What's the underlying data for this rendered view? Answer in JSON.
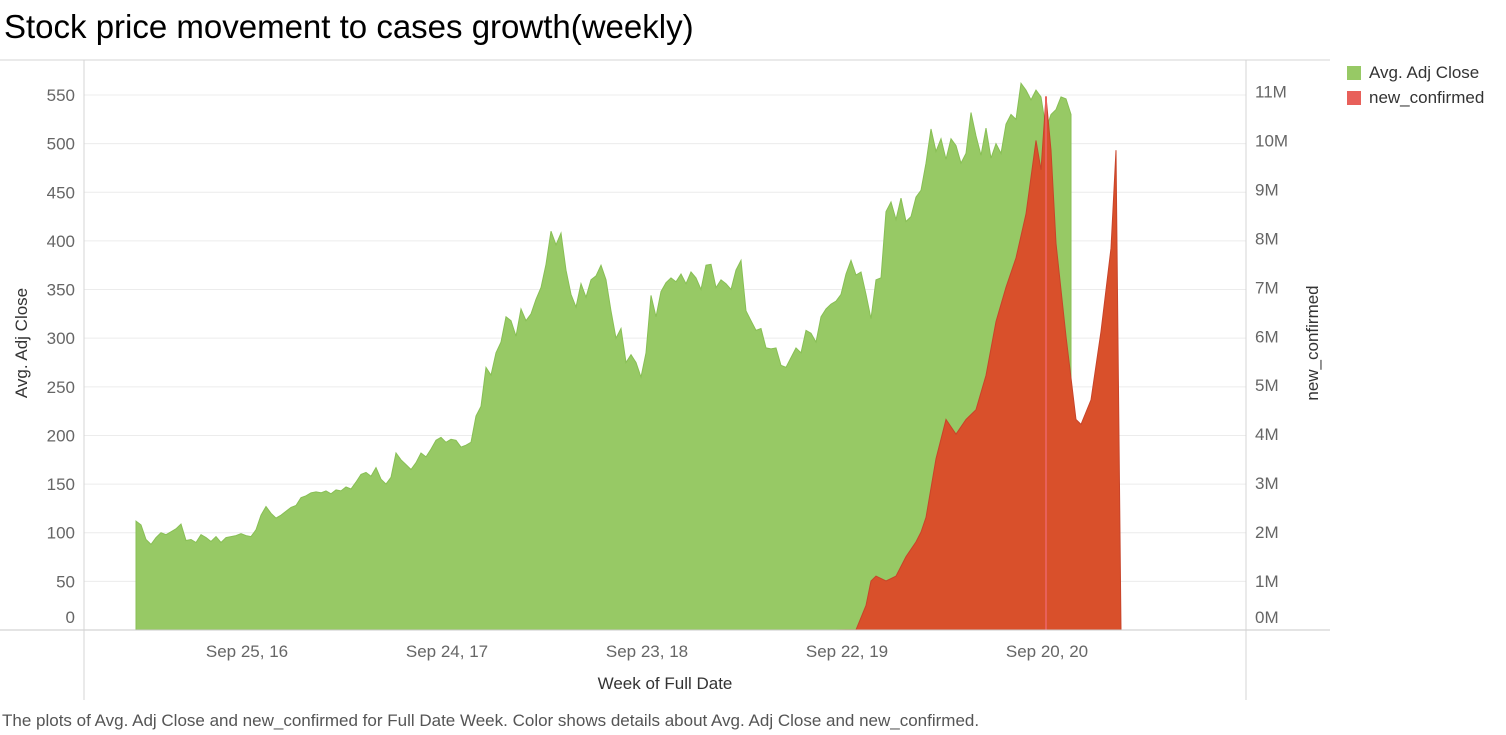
{
  "title": "Stock price movement to cases growth(weekly)",
  "caption": "The plots of Avg. Adj Close and new_confirmed for Full Date Week.  Color shows details about Avg. Adj Close and new_confirmed.",
  "legend": [
    {
      "label": "Avg. Adj Close",
      "color": "#97c965"
    },
    {
      "label": "new_confirmed",
      "color": "#e8605a"
    }
  ],
  "chart_data": {
    "type": "area",
    "xlabel": "Week of Full Date",
    "ylabel_left": "Avg. Adj Close",
    "ylabel_right": "new_confirmed",
    "x_tick_labels": [
      "Sep 25, 16",
      "Sep 24, 17",
      "Sep 23, 18",
      "Sep 22, 19",
      "Sep 20, 20"
    ],
    "y_left_ticks": [
      "0",
      "50",
      "100",
      "150",
      "200",
      "250",
      "300",
      "350",
      "400",
      "450",
      "500",
      "550"
    ],
    "y_right_ticks": [
      "0M",
      "1M",
      "2M",
      "3M",
      "4M",
      "5M",
      "6M",
      "7M",
      "8M",
      "9M",
      "10M",
      "11M"
    ],
    "ylim_left": [
      0,
      550
    ],
    "ylim_right": [
      0,
      11000000
    ],
    "x_range_weeks": [
      0,
      212
    ],
    "x_tick_weeks": [
      20,
      60,
      100,
      140,
      180
    ],
    "series": [
      {
        "name": "Avg. Adj Close",
        "color": "#97c965",
        "points": [
          [
            0,
            112
          ],
          [
            1,
            108
          ],
          [
            2,
            93
          ],
          [
            3,
            88
          ],
          [
            4,
            95
          ],
          [
            5,
            100
          ],
          [
            6,
            98
          ],
          [
            7,
            101
          ],
          [
            8,
            104
          ],
          [
            9,
            109
          ],
          [
            10,
            92
          ],
          [
            11,
            93
          ],
          [
            12,
            90
          ],
          [
            13,
            98
          ],
          [
            14,
            95
          ],
          [
            15,
            91
          ],
          [
            16,
            96
          ],
          [
            17,
            90
          ],
          [
            18,
            95
          ],
          [
            19,
            96
          ],
          [
            20,
            97
          ],
          [
            21,
            99
          ],
          [
            22,
            97
          ],
          [
            23,
            96
          ],
          [
            24,
            103
          ],
          [
            25,
            118
          ],
          [
            26,
            127
          ],
          [
            27,
            120
          ],
          [
            28,
            115
          ],
          [
            29,
            118
          ],
          [
            30,
            122
          ],
          [
            31,
            126
          ],
          [
            32,
            128
          ],
          [
            33,
            136
          ],
          [
            34,
            138
          ],
          [
            35,
            141
          ],
          [
            36,
            142
          ],
          [
            37,
            141
          ],
          [
            38,
            143
          ],
          [
            39,
            140
          ],
          [
            40,
            144
          ],
          [
            41,
            143
          ],
          [
            42,
            147
          ],
          [
            43,
            145
          ],
          [
            44,
            152
          ],
          [
            45,
            160
          ],
          [
            46,
            162
          ],
          [
            47,
            158
          ],
          [
            48,
            167
          ],
          [
            49,
            155
          ],
          [
            50,
            150
          ],
          [
            51,
            157
          ],
          [
            52,
            182
          ],
          [
            53,
            175
          ],
          [
            54,
            170
          ],
          [
            55,
            165
          ],
          [
            56,
            172
          ],
          [
            57,
            182
          ],
          [
            58,
            178
          ],
          [
            59,
            186
          ],
          [
            60,
            195
          ],
          [
            61,
            198
          ],
          [
            62,
            193
          ],
          [
            63,
            196
          ],
          [
            64,
            195
          ],
          [
            65,
            188
          ],
          [
            66,
            190
          ],
          [
            67,
            193
          ],
          [
            68,
            220
          ],
          [
            69,
            230
          ],
          [
            70,
            270
          ],
          [
            71,
            262
          ],
          [
            72,
            285
          ],
          [
            73,
            296
          ],
          [
            74,
            322
          ],
          [
            75,
            318
          ],
          [
            76,
            302
          ],
          [
            77,
            330
          ],
          [
            78,
            318
          ],
          [
            79,
            325
          ],
          [
            80,
            340
          ],
          [
            81,
            352
          ],
          [
            82,
            376
          ],
          [
            83,
            410
          ],
          [
            84,
            396
          ],
          [
            85,
            408
          ],
          [
            86,
            370
          ],
          [
            87,
            345
          ],
          [
            88,
            332
          ],
          [
            89,
            356
          ],
          [
            90,
            342
          ],
          [
            91,
            360
          ],
          [
            92,
            364
          ],
          [
            93,
            375
          ],
          [
            94,
            360
          ],
          [
            95,
            328
          ],
          [
            96,
            300
          ],
          [
            97,
            310
          ],
          [
            98,
            275
          ],
          [
            99,
            283
          ],
          [
            100,
            275
          ],
          [
            101,
            260
          ],
          [
            102,
            285
          ],
          [
            103,
            344
          ],
          [
            104,
            322
          ],
          [
            105,
            348
          ],
          [
            106,
            357
          ],
          [
            107,
            362
          ],
          [
            108,
            358
          ],
          [
            109,
            366
          ],
          [
            110,
            356
          ],
          [
            111,
            368
          ],
          [
            112,
            362
          ],
          [
            113,
            350
          ],
          [
            114,
            375
          ],
          [
            115,
            376
          ],
          [
            116,
            352
          ],
          [
            117,
            360
          ],
          [
            118,
            356
          ],
          [
            119,
            350
          ],
          [
            120,
            370
          ],
          [
            121,
            380
          ],
          [
            122,
            328
          ],
          [
            123,
            318
          ],
          [
            124,
            308
          ],
          [
            125,
            310
          ],
          [
            126,
            290
          ],
          [
            127,
            289
          ],
          [
            128,
            290
          ],
          [
            129,
            272
          ],
          [
            130,
            270
          ],
          [
            131,
            280
          ],
          [
            132,
            290
          ],
          [
            133,
            285
          ],
          [
            134,
            308
          ],
          [
            135,
            305
          ],
          [
            136,
            296
          ],
          [
            137,
            322
          ],
          [
            138,
            330
          ],
          [
            139,
            335
          ],
          [
            140,
            338
          ],
          [
            141,
            345
          ],
          [
            142,
            366
          ],
          [
            143,
            380
          ],
          [
            144,
            365
          ],
          [
            145,
            368
          ],
          [
            146,
            345
          ],
          [
            147,
            320
          ],
          [
            148,
            360
          ],
          [
            149,
            362
          ],
          [
            150,
            430
          ],
          [
            151,
            440
          ],
          [
            152,
            422
          ],
          [
            153,
            444
          ],
          [
            154,
            420
          ],
          [
            155,
            425
          ],
          [
            156,
            445
          ],
          [
            157,
            452
          ],
          [
            158,
            480
          ],
          [
            159,
            515
          ],
          [
            160,
            492
          ],
          [
            161,
            505
          ],
          [
            162,
            484
          ],
          [
            163,
            505
          ],
          [
            164,
            498
          ],
          [
            165,
            480
          ],
          [
            166,
            490
          ],
          [
            167,
            532
          ],
          [
            168,
            508
          ],
          [
            169,
            488
          ],
          [
            170,
            516
          ],
          [
            171,
            485
          ],
          [
            172,
            500
          ],
          [
            173,
            490
          ],
          [
            174,
            520
          ],
          [
            175,
            530
          ],
          [
            176,
            525
          ],
          [
            177,
            562
          ],
          [
            178,
            555
          ],
          [
            179,
            545
          ],
          [
            180,
            555
          ],
          [
            181,
            548
          ],
          [
            182,
            515
          ],
          [
            183,
            530
          ],
          [
            184,
            535
          ],
          [
            185,
            548
          ],
          [
            186,
            546
          ],
          [
            187,
            530
          ]
        ]
      },
      {
        "name": "new_confirmed",
        "color": "#d9502b",
        "points": [
          [
            0,
            0
          ],
          [
            140,
            0
          ],
          [
            144,
            5000
          ],
          [
            146,
            500000
          ],
          [
            147,
            1000000
          ],
          [
            148,
            1100000
          ],
          [
            150,
            1000000
          ],
          [
            152,
            1100000
          ],
          [
            154,
            1500000
          ],
          [
            156,
            1800000
          ],
          [
            157,
            2000000
          ],
          [
            158,
            2300000
          ],
          [
            160,
            3500000
          ],
          [
            162,
            4300000
          ],
          [
            164,
            4000000
          ],
          [
            166,
            4300000
          ],
          [
            168,
            4500000
          ],
          [
            170,
            5200000
          ],
          [
            172,
            6300000
          ],
          [
            174,
            7000000
          ],
          [
            176,
            7600000
          ],
          [
            178,
            8500000
          ],
          [
            180,
            10000000
          ],
          [
            181,
            9400000
          ],
          [
            182,
            10900000
          ],
          [
            183,
            9800000
          ],
          [
            184,
            7900000
          ],
          [
            186,
            6000000
          ],
          [
            188,
            4300000
          ],
          [
            189,
            4200000
          ],
          [
            191,
            4700000
          ],
          [
            193,
            6100000
          ],
          [
            195,
            7800000
          ],
          [
            196,
            9800000
          ],
          [
            197,
            0
          ]
        ]
      }
    ]
  }
}
